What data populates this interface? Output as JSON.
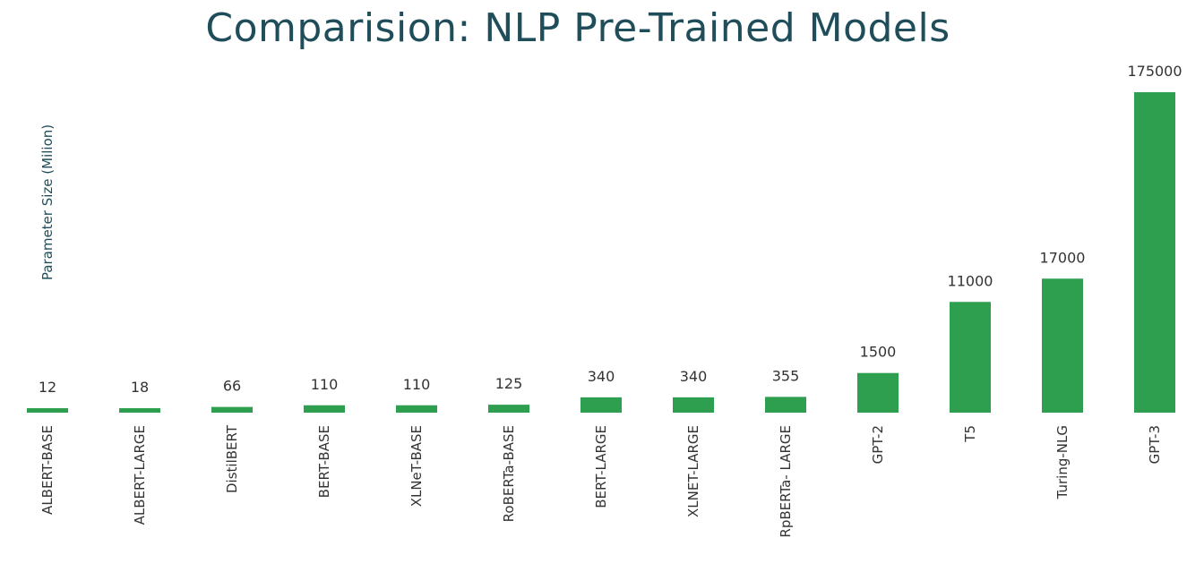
{
  "chart_data": {
    "type": "bar",
    "title": "Comparision: NLP Pre-Trained Models",
    "ylabel": "Parameter Size (Milion)",
    "xlabel": "",
    "categories": [
      "ALBERT-BASE",
      "ALBERT-LARGE",
      "DistilBERT",
      "BERT-BASE",
      "XLNeT-BASE",
      "RoBERTa-BASE",
      "BERT-LARGE",
      "XLNET-LARGE",
      "RpBERTa- LARGE",
      "GPT-2",
      "T5",
      "Turing-NLG",
      "GPT-3"
    ],
    "values": [
      12,
      18,
      66,
      110,
      110,
      125,
      340,
      340,
      355,
      1500,
      11000,
      17000,
      175000
    ],
    "value_labels": [
      "12",
      "18",
      "66",
      "110",
      "110",
      "125",
      "340",
      "340",
      "355",
      "1500",
      "11000",
      "17000",
      "175000"
    ],
    "scale": "non-linear (bar heights not proportional to values)",
    "grid": false,
    "legend": "none",
    "bar_color": "#2e9e4f",
    "text_color": "#1f4e5a",
    "label_color": "#333333"
  }
}
